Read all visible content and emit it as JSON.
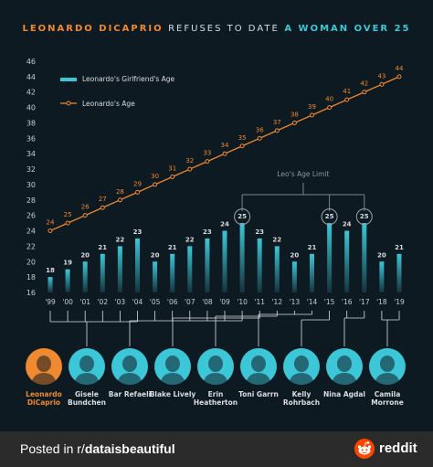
{
  "title": {
    "part1": "LEONARDO DICAPRIO",
    "part2": "REFUSES TO DATE",
    "part3": "A WOMAN OVER 25"
  },
  "chart_data": {
    "type": "bar",
    "categories": [
      "'99",
      "'00",
      "'01",
      "'02",
      "'03",
      "'04",
      "'05",
      "'06",
      "'07",
      "'08",
      "'09",
      "'10",
      "'11",
      "'12",
      "'13",
      "'14",
      "'15",
      "'16",
      "'17",
      "'18",
      "'19"
    ],
    "series": [
      {
        "name": "Leonardo's Girlfriend's Age",
        "type": "bar",
        "values": [
          18,
          19,
          20,
          21,
          22,
          23,
          20,
          21,
          22,
          23,
          24,
          25,
          23,
          22,
          20,
          21,
          25,
          24,
          25,
          20,
          21
        ]
      },
      {
        "name": "Leonardo's Age",
        "type": "line",
        "values": [
          24,
          25,
          26,
          27,
          28,
          29,
          30,
          31,
          32,
          33,
          34,
          35,
          36,
          37,
          38,
          39,
          40,
          41,
          42,
          43,
          44
        ]
      }
    ],
    "y_ticks": [
      16,
      18,
      20,
      22,
      24,
      26,
      28,
      30,
      32,
      34,
      36,
      38,
      40,
      42,
      44,
      46
    ],
    "ylim": [
      16,
      46
    ],
    "annotation": "Leo's Age Limit",
    "annotation_years": [
      "'10",
      "'15",
      "'17"
    ],
    "legend_position": "top-left",
    "colors": {
      "bar": "#3cc7d8",
      "line": "#f0892f"
    }
  },
  "people": [
    {
      "name": "Leonardo DiCaprio",
      "color": "#f0892f",
      "years": []
    },
    {
      "name": "Gisele Bundchen",
      "color": "#d9dde0",
      "years": [
        "'99",
        "'00",
        "'01",
        "'02",
        "'03",
        "'04"
      ]
    },
    {
      "name": "Bar Refaeli",
      "color": "#d9dde0",
      "years": [
        "'05",
        "'06",
        "'07",
        "'08",
        "'09",
        "'10"
      ]
    },
    {
      "name": "Blake Lively",
      "color": "#d9dde0",
      "years": [
        "'11"
      ]
    },
    {
      "name": "Erin Heatherton",
      "color": "#d9dde0",
      "years": [
        "'12"
      ]
    },
    {
      "name": "Toni Garrn",
      "color": "#d9dde0",
      "years": [
        "'13",
        "'14"
      ]
    },
    {
      "name": "Kelly Rohrbach",
      "color": "#d9dde0",
      "years": [
        "'15"
      ]
    },
    {
      "name": "Nina Agdal",
      "color": "#d9dde0",
      "years": [
        "'16",
        "'17"
      ]
    },
    {
      "name": "Camila Morrone",
      "color": "#d9dde0",
      "years": [
        "'18",
        "'19"
      ]
    }
  ],
  "footer": {
    "text_prefix": "Posted in r/",
    "text_sub": "dataisbeautiful",
    "brand": "reddit"
  }
}
